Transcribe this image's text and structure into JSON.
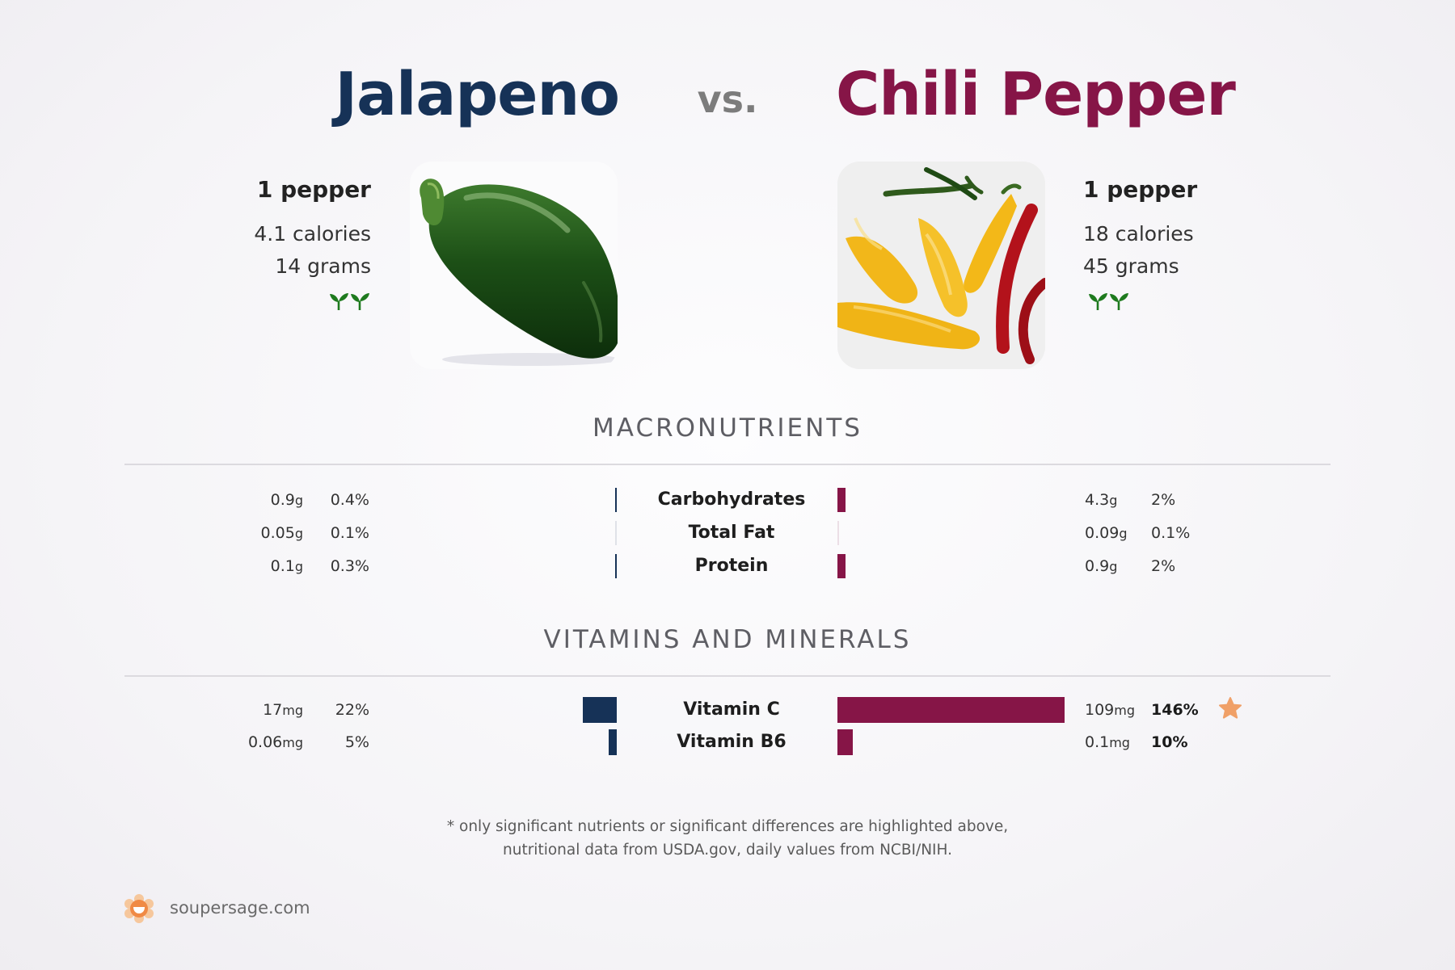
{
  "header": {
    "left_title": "Jalapeno",
    "vs": "vs.",
    "right_title": "Chili Pepper"
  },
  "left_food": {
    "serving": "1 pepper",
    "calories": "4.1 calories",
    "grams": "14 grams",
    "image": "jalapeno-photo"
  },
  "right_food": {
    "serving": "1 pepper",
    "calories": "18 calories",
    "grams": "45 grams",
    "image": "chili-pepper-photo"
  },
  "sections": {
    "macro_title": "MACRONUTRIENTS",
    "vitamins_title": "VITAMINS AND MINERALS"
  },
  "chart_data": [
    {
      "type": "bar",
      "title": "MACRONUTRIENTS",
      "categories": [
        "Carbohydrates",
        "Total Fat",
        "Protein"
      ],
      "series": [
        {
          "name": "Jalapeno",
          "amounts": [
            "0.9",
            "0.05",
            "0.1"
          ],
          "units": [
            "g",
            "g",
            "g"
          ],
          "percent_labels": [
            "0.4%",
            "0.1%",
            "0.3%"
          ],
          "values": [
            0.4,
            0.1,
            0.3
          ],
          "color": "#163257"
        },
        {
          "name": "Chili Pepper",
          "amounts": [
            "4.3",
            "0.09",
            "0.9"
          ],
          "units": [
            "g",
            "g",
            "g"
          ],
          "percent_labels": [
            "2%",
            "0.1%",
            "2%"
          ],
          "values": [
            2,
            0.1,
            2
          ],
          "color": "#861547"
        }
      ],
      "scale_max_percent": 55
    },
    {
      "type": "bar",
      "title": "VITAMINS AND MINERALS",
      "categories": [
        "Vitamin C",
        "Vitamin B6"
      ],
      "series": [
        {
          "name": "Jalapeno",
          "amounts": [
            "17",
            "0.06"
          ],
          "units": [
            "mg",
            "mg"
          ],
          "percent_labels": [
            "22%",
            "5%"
          ],
          "values": [
            22,
            5
          ],
          "color": "#163257"
        },
        {
          "name": "Chili Pepper",
          "amounts": [
            "109",
            "0.1"
          ],
          "units": [
            "mg",
            "mg"
          ],
          "percent_labels": [
            "146%",
            "10%"
          ],
          "values": [
            146,
            10
          ],
          "bold_percent": [
            true,
            true
          ],
          "highlight_star": [
            true,
            false
          ],
          "color": "#861547"
        }
      ],
      "scale_max_percent": 146
    }
  ],
  "footer": {
    "note_line1": "* only significant nutrients or significant differences are highlighted above,",
    "note_line2": "nutritional data from USDA.gov, daily values from NCBI/NIH.",
    "brand": "soupersage.com",
    "logo": "soupersage-logo-icon"
  },
  "colors": {
    "left": "#163257",
    "right": "#861547",
    "star": "#f0a068",
    "sprout": "#1e7a1e"
  }
}
